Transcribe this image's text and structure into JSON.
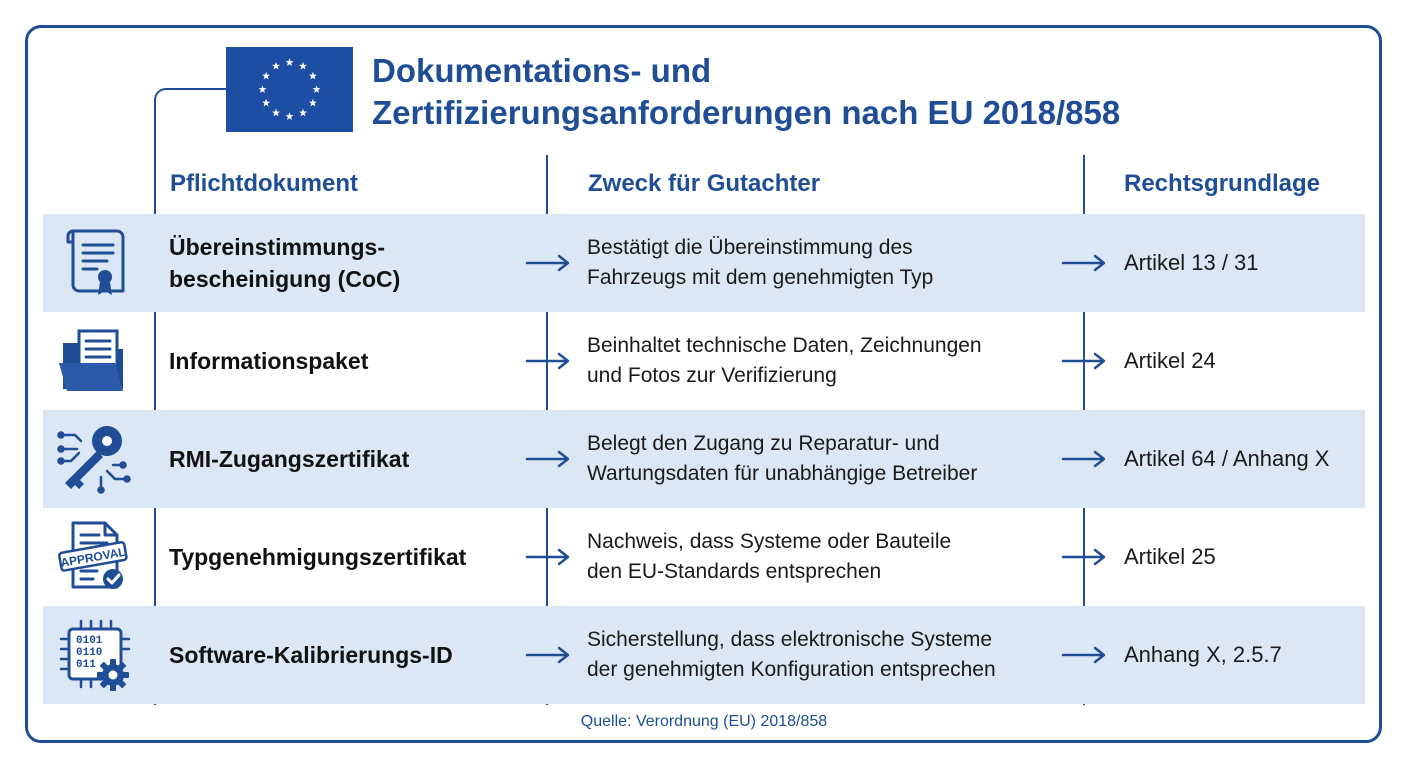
{
  "header": {
    "title_line1": "Dokumentations- und",
    "title_line2": "Zertifizierungsanforderungen nach EU 2018/858",
    "flag_icon": "eu-flag-icon"
  },
  "columns": {
    "document": "Pflichtdokument",
    "purpose": "Zweck für Gutachter",
    "legal": "Rechtsgrundlage"
  },
  "rows": [
    {
      "icon": "certificate-scroll-icon",
      "doc_line1": "Übereinstimmungs-",
      "doc_line2": "bescheinigung (CoC)",
      "purpose_line1": "Bestätigt die Übereinstimmung des",
      "purpose_line2": "Fahrzeugs mit dem genehmigten Typ",
      "legal": "Artikel 13 / 31"
    },
    {
      "icon": "folder-document-icon",
      "doc_line1": "Informationspaket",
      "doc_line2": "",
      "purpose_line1": "Beinhaltet technische Daten, Zeichnungen",
      "purpose_line2": "und Fotos zur Verifizierung",
      "legal": "Artikel 24"
    },
    {
      "icon": "circuit-key-icon",
      "doc_line1": "RMI-Zugangszertifikat",
      "doc_line2": "",
      "purpose_line1": "Belegt den Zugang zu Reparatur- und",
      "purpose_line2": "Wartungsdaten für unabhängige Betreiber",
      "legal": "Artikel 64 / Anhang X"
    },
    {
      "icon": "approval-stamp-icon",
      "stamp_text": "APPROVAL",
      "doc_line1": "Typgenehmigungszertifikat",
      "doc_line2": "",
      "purpose_line1": "Nachweis, dass Systeme oder Bauteile",
      "purpose_line2": "den EU-Standards entsprechen",
      "legal": "Artikel 25"
    },
    {
      "icon": "chip-gear-icon",
      "chip_line1": "0101",
      "chip_line2": "0110",
      "chip_line3": "011",
      "doc_line1": "Software-Kalibrierungs-ID",
      "doc_line2": "",
      "purpose_line1": "Sicherstellung, dass elektronische Systeme",
      "purpose_line2": "der genehmigten Konfiguration entsprechen",
      "legal": "Anhang X, 2.5.7"
    }
  ],
  "footer": {
    "source": "Quelle: Verordnung (EU) 2018/858"
  },
  "colors": {
    "accent": "#1f4e96",
    "row_shade": "#dce7f6",
    "flag_blue": "#1e4ea3",
    "flag_star": "#ffffff"
  }
}
